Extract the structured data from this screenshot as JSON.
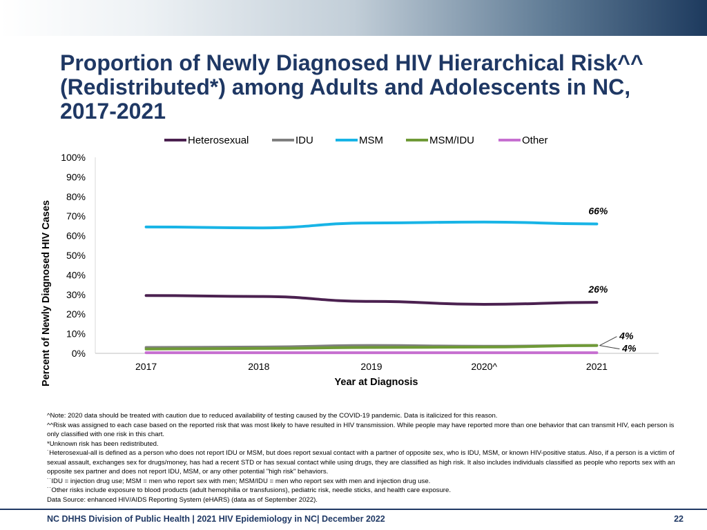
{
  "slide": {
    "title": "Proportion of Newly Diagnosed HIV Hierarchical Risk^^ (Redistributed*) among Adults and Adolescents in NC, 2017-2021"
  },
  "chart_data": {
    "type": "line",
    "title": "Proportion of Newly Diagnosed HIV Hierarchical Risk^^ (Redistributed*) among Adults and Adolescents in NC, 2017-2021",
    "xlabel": "Year at Diagnosis",
    "ylabel": "Percent of Newly Diagnosed HIV Cases",
    "categories": [
      "2017",
      "2018",
      "2019",
      "2020^",
      "2021"
    ],
    "y_ticks": [
      "0%",
      "10%",
      "20%",
      "30%",
      "40%",
      "50%",
      "60%",
      "70%",
      "80%",
      "90%",
      "100%"
    ],
    "ylim": [
      0,
      100
    ],
    "grid": false,
    "legend_position": "top",
    "series": [
      {
        "name": "Heterosexual",
        "color": "#4b2150",
        "values": [
          29.5,
          29,
          26.5,
          25,
          26
        ]
      },
      {
        "name": "IDU",
        "color": "#7f7f7f",
        "values": [
          3,
          3.2,
          4,
          3.6,
          4
        ]
      },
      {
        "name": "MSM",
        "color": "#18b4e6",
        "values": [
          64.5,
          64,
          66.5,
          67,
          66
        ]
      },
      {
        "name": "MSM/IDU",
        "color": "#6f9a37",
        "values": [
          2.2,
          2.5,
          3,
          3.2,
          4
        ]
      },
      {
        "name": "Other",
        "color": "#c66fd0",
        "values": [
          0.3,
          0.3,
          0.3,
          0.3,
          0.3
        ]
      }
    ],
    "annotations": [
      {
        "series": "MSM",
        "label": "66%"
      },
      {
        "series": "Heterosexual",
        "label": "26%"
      },
      {
        "series": "IDU",
        "label": "4%"
      },
      {
        "series": "MSM/IDU",
        "label": "4%"
      }
    ]
  },
  "notes": [
    "^Note: 2020 data should be treated with caution due to reduced availability of testing caused by the COVID-19 pandemic. Data is italicized for this reason.",
    "^^Risk was assigned to each case based on the reported risk that was most likely to have resulted in HIV transmission. While people may have reported more than one behavior that can transmit HIV, each person is only classified with one risk in this chart.",
    "*Unknown risk has been redistributed.",
    "˙Heterosexual-all is defined as a person who does not report IDU or MSM, but does report sexual contact with a partner of opposite sex, who is IDU, MSM, or known HIV-positive status. Also, if a person is a victim of sexual assault, exchanges sex for drugs/money, has had a recent STD or has sexual contact while using drugs, they are classified as high risk. It also includes individuals classified as people who reports sex with an opposite sex partner and does not report IDU, MSM, or any other potential \"high risk\" behaviors.",
    "˙˙IDU = injection drug use; MSM = men who report sex with men; MSM/IDU = men who report sex with men and injection drug use.",
    "˙˙Other risks include exposure to blood products (adult hemophilia or transfusions), pediatric risk, needle sticks, and health care exposure.",
    "Data Source: enhanced HIV/AIDS Reporting System (eHARS) (data as of September 2022)."
  ],
  "footer": {
    "text": "NC DHHS Division of Public Health | 2021 HIV Epidemiology in NC| December 2022",
    "page": "22"
  }
}
